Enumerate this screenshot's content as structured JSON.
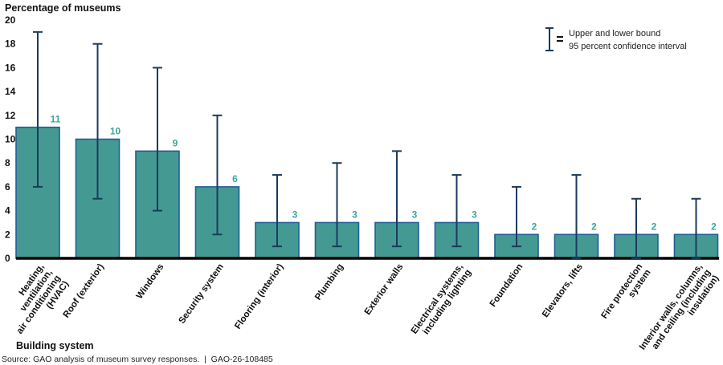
{
  "chart_data": {
    "type": "bar",
    "title": "",
    "ylabel": "Percentage of museums",
    "xlabel": "Building system",
    "ylim": [
      0,
      20
    ],
    "yticks": [
      0,
      2,
      4,
      6,
      8,
      10,
      12,
      14,
      16,
      18,
      20
    ],
    "grid": false,
    "categories": [
      [
        "Heating,",
        "ventilation,",
        "air conditioning",
        "(HVAC)"
      ],
      [
        "Roof (exterior)"
      ],
      [
        "Windows"
      ],
      [
        "Security system"
      ],
      [
        "Flooring (interior)"
      ],
      [
        "Plumbing"
      ],
      [
        "Exterior walls"
      ],
      [
        "Electrical systems,",
        "including lighting"
      ],
      [
        "Foundation"
      ],
      [
        "Elevators, lifts"
      ],
      [
        "Fire protection",
        "system"
      ],
      [
        "Interior walls, columns,",
        "and ceiling (including",
        "insulation)"
      ]
    ],
    "values": [
      11,
      10,
      9,
      6,
      3,
      3,
      3,
      3,
      2,
      2,
      2,
      2
    ],
    "ci_upper": [
      19,
      18,
      16,
      12,
      7,
      8,
      9,
      7,
      6,
      7,
      5,
      5
    ],
    "ci_lower": [
      6,
      5,
      4,
      2,
      1,
      1,
      1,
      1,
      1,
      0,
      0,
      0
    ],
    "legend": {
      "placement": "top-right",
      "line1": "Upper and lower bound",
      "line2": "95 percent confidence interval"
    },
    "colors": {
      "bar_fill": "#449A92",
      "bar_stroke": "#1F5E96",
      "error_bar": "#1B3A5E",
      "value_label": "#3FA59B",
      "axis": "#000000"
    }
  },
  "source": "Source: GAO analysis of museum survey responses.  |  GAO-26-108485"
}
